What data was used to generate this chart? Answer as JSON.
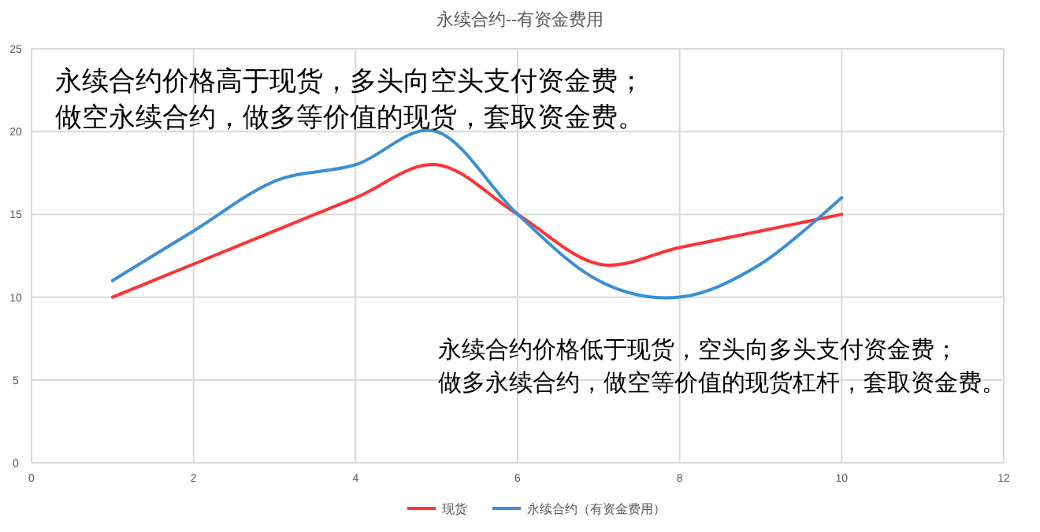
{
  "chart_data": {
    "type": "line",
    "title": "永续合约--有资金费用",
    "x": [
      1,
      2,
      3,
      4,
      5,
      6,
      7,
      8,
      9,
      10
    ],
    "series": [
      {
        "name": "现货",
        "color": "#ff3333",
        "values": [
          10,
          12,
          14,
          16,
          18,
          15,
          12,
          13,
          14,
          15
        ]
      },
      {
        "name": "永续合约（有资金费用）",
        "color": "#3a8fd6",
        "values": [
          11,
          14,
          17,
          18,
          20,
          15,
          11,
          10,
          12,
          16
        ]
      }
    ],
    "xlim": [
      0,
      12
    ],
    "xticks": [
      0,
      2,
      4,
      6,
      8,
      10,
      12
    ],
    "ylim": [
      0,
      25
    ],
    "yticks": [
      0,
      5,
      10,
      15,
      20,
      25
    ],
    "grid": true,
    "legend": "bottom",
    "marker": "none",
    "line_style": "solid",
    "annotations": [
      "永续合约价格高于现货，多头向空头支付资金费；",
      "做空永续合约，做多等价值的现货，套取资金费。",
      "永续合约价格低于现货，空头向多头支付资金费；",
      "做多永续合约，做空等价值的现货杠杆，套取资金费。"
    ]
  }
}
